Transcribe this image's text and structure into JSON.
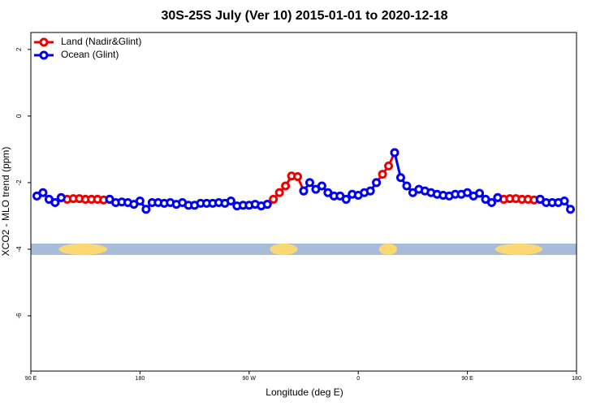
{
  "chart_data": {
    "type": "line",
    "title": "30S-25S July (Ver 10)   2015-01-01 to 2020-12-18",
    "x_label": "Longitude (deg E)",
    "y_label": "XCO2 - MLO trend (ppm)",
    "x": [
      95,
      100,
      105,
      110,
      115,
      120,
      125,
      130,
      135,
      140,
      145,
      150,
      155,
      160,
      165,
      170,
      175,
      180,
      185,
      190,
      195,
      200,
      205,
      210,
      215,
      220,
      225,
      230,
      235,
      240,
      245,
      250,
      255,
      260,
      265,
      270,
      275,
      280,
      285,
      290,
      295,
      300,
      305,
      310,
      315,
      320,
      325,
      330,
      335,
      340,
      345,
      350,
      355,
      360,
      365,
      370,
      375,
      380,
      385,
      390,
      395,
      400,
      405,
      410,
      415,
      420,
      425,
      430,
      435,
      440,
      445,
      450,
      455,
      460,
      465,
      470,
      475,
      480,
      485,
      490,
      495,
      500,
      505,
      510,
      515,
      520,
      525,
      530,
      535
    ],
    "series": [
      {
        "name": "Land (Nadir&Glint)",
        "color": "#ee0000",
        "values": [
          null,
          null,
          null,
          null,
          -2.45,
          -2.5,
          -2.48,
          -2.48,
          -2.5,
          -2.5,
          -2.5,
          -2.52,
          -2.5,
          null,
          null,
          null,
          null,
          null,
          null,
          null,
          null,
          null,
          null,
          null,
          null,
          null,
          null,
          null,
          null,
          null,
          null,
          null,
          null,
          null,
          null,
          null,
          null,
          null,
          -2.65,
          -2.5,
          -2.3,
          -2.1,
          -1.8,
          -1.82,
          -2.25,
          null,
          null,
          null,
          null,
          null,
          null,
          null,
          null,
          null,
          null,
          null,
          -2.0,
          -1.75,
          -1.5,
          -1.1,
          null,
          null,
          null,
          null,
          null,
          null,
          null,
          null,
          null,
          null,
          null,
          null,
          null,
          null,
          null,
          null,
          -2.45,
          -2.5,
          -2.48,
          -2.48,
          -2.5,
          -2.5,
          -2.52,
          -2.5,
          null,
          null,
          null,
          null,
          null
        ]
      },
      {
        "name": "Ocean (Glint)",
        "color": "#0000ee",
        "values": [
          -2.4,
          -2.3,
          -2.5,
          -2.6,
          -2.45,
          null,
          null,
          null,
          null,
          null,
          null,
          null,
          -2.5,
          -2.6,
          -2.58,
          -2.6,
          -2.65,
          -2.55,
          -2.8,
          -2.6,
          -2.6,
          -2.62,
          -2.6,
          -2.65,
          -2.6,
          -2.68,
          -2.68,
          -2.62,
          -2.62,
          -2.62,
          -2.6,
          -2.62,
          -2.55,
          -2.7,
          -2.68,
          -2.68,
          -2.65,
          -2.7,
          -2.65,
          null,
          null,
          null,
          null,
          null,
          -2.25,
          -2.0,
          -2.2,
          -2.1,
          -2.3,
          -2.4,
          -2.4,
          -2.5,
          -2.35,
          -2.38,
          -2.3,
          -2.25,
          -2.0,
          null,
          null,
          -1.1,
          -1.85,
          -2.1,
          -2.3,
          -2.2,
          -2.25,
          -2.3,
          -2.35,
          -2.38,
          -2.4,
          -2.35,
          -2.35,
          -2.3,
          -2.4,
          -2.32,
          -2.5,
          -2.6,
          -2.45,
          null,
          null,
          null,
          null,
          null,
          null,
          -2.5,
          -2.6,
          -2.6,
          -2.6,
          -2.55,
          -2.8
        ]
      }
    ],
    "band": {
      "y": -4,
      "ocean_color": "#a6bcd8",
      "land_color": "#fcd874",
      "land": [
        [
          113,
          153
        ],
        [
          287,
          310
        ],
        [
          377,
          392
        ],
        [
          473,
          512
        ]
      ]
    },
    "xlim": [
      90,
      540
    ],
    "ylim": [
      -7.66,
      2.51
    ],
    "xticks": [
      {
        "value": 90,
        "label": "90 E"
      },
      180,
      {
        "value": 270,
        "label": "90 W"
      },
      {
        "value": 360,
        "label": "0"
      },
      {
        "value": 450,
        "label": "90 E"
      },
      {
        "value": 540,
        "label": "180"
      }
    ],
    "yticks": [
      -6,
      -4,
      -2,
      0,
      2
    ],
    "legend": "top-left"
  }
}
